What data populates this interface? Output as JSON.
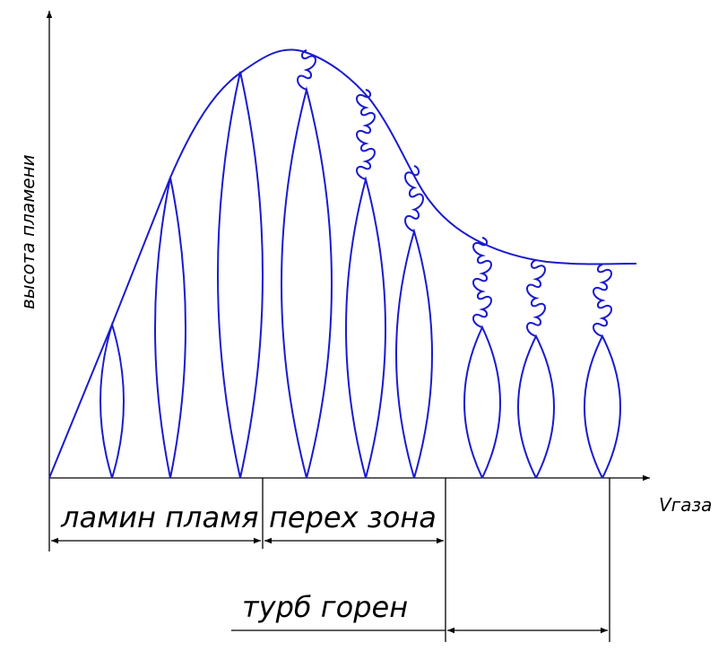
{
  "axes": {
    "y_label": "высота пламени",
    "x_label": "Vгаза"
  },
  "zones": {
    "laminar": "ламин пламя",
    "transition": "перех зона",
    "turbulent": "турб горен"
  }
}
